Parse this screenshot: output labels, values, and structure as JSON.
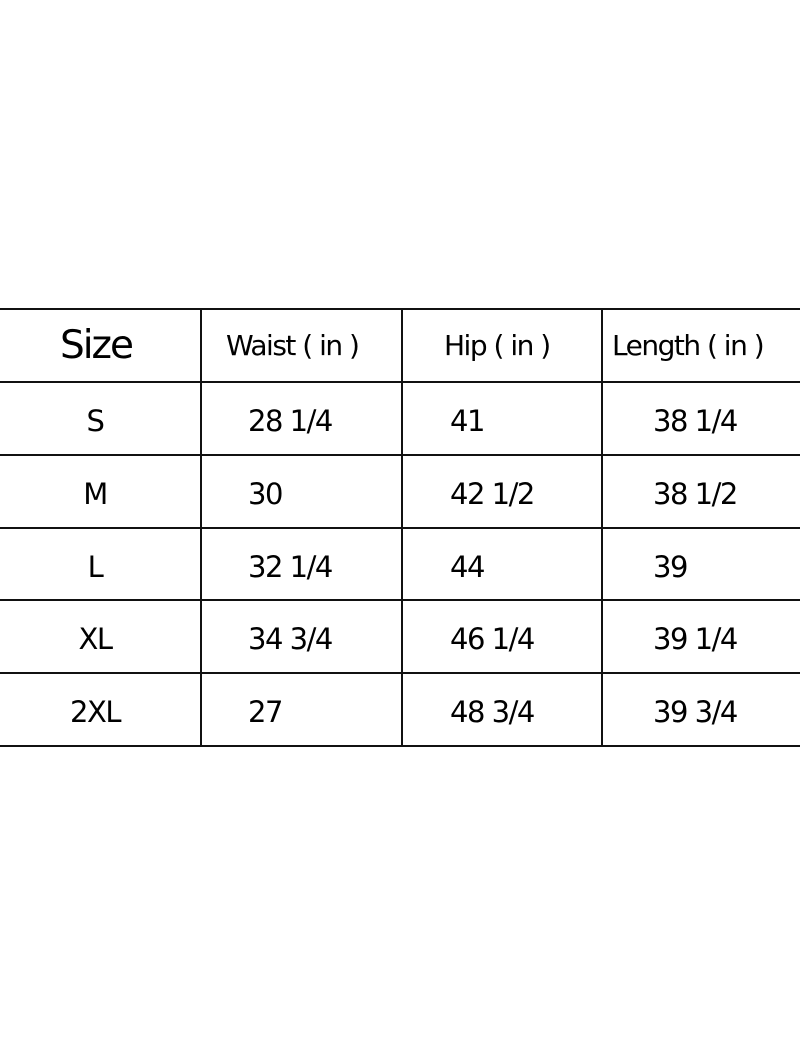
{
  "table": {
    "headers": [
      "Size",
      "Waist ( in )",
      "Hip ( in )",
      "Length ( in )"
    ],
    "rows": [
      [
        "S",
        "28 1/4",
        "41",
        "38 1/4"
      ],
      [
        "M",
        "30",
        "42 1/2",
        "38 1/2"
      ],
      [
        "L",
        "32 1/4",
        "44",
        "39"
      ],
      [
        "XL",
        "34 3/4",
        "46 1/4",
        "39 1/4"
      ],
      [
        "2XL",
        "27",
        "48 3/4",
        "39 3/4"
      ]
    ]
  }
}
